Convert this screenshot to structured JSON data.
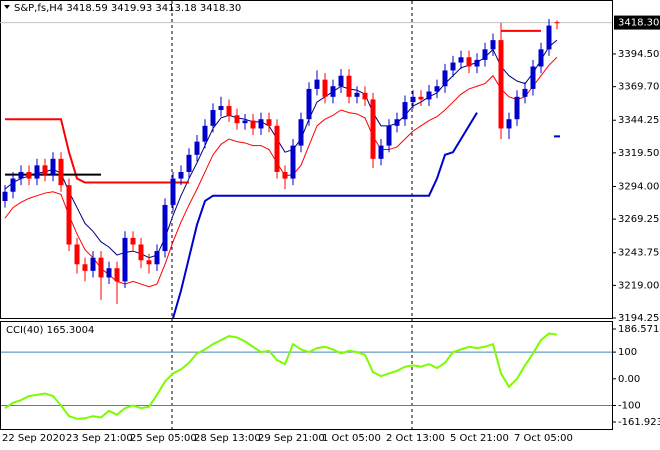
{
  "chart_data": [
    {
      "type": "candlestick",
      "title": "S&P,fs,H4  3418.59 3419.93 3413.18 3418.30",
      "categories": [
        "22 Sep 2020",
        null,
        null,
        null,
        null,
        null,
        null,
        null,
        "23 Sep 21:00",
        null,
        null,
        null,
        null,
        null,
        null,
        null,
        "25 Sep 05:00",
        null,
        null,
        null,
        null,
        null,
        null,
        null,
        "28 Sep 13:00",
        null,
        null,
        null,
        null,
        null,
        null,
        null,
        "29 Sep 21:00",
        null,
        null,
        null,
        null,
        null,
        null,
        null,
        "1 Oct 05:00",
        null,
        null,
        null,
        null,
        null,
        null,
        null,
        "2 Oct 13:00",
        null,
        null,
        null,
        null,
        null,
        null,
        null,
        "5 Oct 21:00",
        null,
        null,
        null,
        null,
        null,
        null,
        null,
        "7 Oct 05:00",
        null,
        null,
        null,
        null,
        null
      ],
      "open": [
        3283,
        3290,
        3300,
        3305,
        3300,
        3310,
        3303,
        3315,
        3295,
        3250,
        3235,
        3230,
        3240,
        3225,
        3232,
        3222,
        3255,
        3250,
        3238,
        3235,
        3245,
        3280,
        3300,
        3305,
        3318,
        3328,
        3340,
        3352,
        3355,
        3348,
        3342,
        3344,
        3338,
        3345,
        3340,
        3305,
        3300,
        3325,
        3345,
        3368,
        3375,
        3362,
        3370,
        3378,
        3362,
        3365,
        3360,
        3315,
        3325,
        3340,
        3345,
        3358,
        3362,
        3360,
        3366,
        3370,
        3382,
        3388,
        3392,
        3385,
        3390,
        3398,
        3405,
        3338,
        3345,
        3362,
        3368,
        3385,
        3398,
        3418.59
      ],
      "high": [
        3295,
        3305,
        3310,
        3310,
        3315,
        3315,
        3320,
        3320,
        3300,
        3255,
        3240,
        3245,
        3245,
        3237,
        3237,
        3260,
        3260,
        3255,
        3243,
        3250,
        3285,
        3305,
        3310,
        3323,
        3333,
        3345,
        3357,
        3362,
        3360,
        3353,
        3349,
        3349,
        3350,
        3350,
        3345,
        3310,
        3330,
        3350,
        3373,
        3382,
        3380,
        3375,
        3383,
        3383,
        3370,
        3370,
        3365,
        3330,
        3345,
        3350,
        3363,
        3367,
        3367,
        3371,
        3375,
        3387,
        3393,
        3397,
        3397,
        3395,
        3403,
        3410,
        3418,
        3350,
        3367,
        3373,
        3390,
        3403,
        3421,
        3419.93
      ],
      "low": [
        3278,
        3285,
        3295,
        3295,
        3295,
        3298,
        3298,
        3290,
        3245,
        3228,
        3222,
        3225,
        3208,
        3220,
        3205,
        3217,
        3245,
        3232,
        3228,
        3230,
        3240,
        3275,
        3295,
        3300,
        3313,
        3323,
        3335,
        3347,
        3343,
        3337,
        3337,
        3333,
        3333,
        3335,
        3300,
        3292,
        3295,
        3320,
        3340,
        3363,
        3357,
        3357,
        3365,
        3357,
        3357,
        3355,
        3308,
        3310,
        3320,
        3335,
        3340,
        3353,
        3355,
        3355,
        3361,
        3365,
        3377,
        3383,
        3380,
        3380,
        3385,
        3393,
        3330,
        3330,
        3340,
        3357,
        3363,
        3380,
        3393,
        3413.18
      ],
      "close": [
        3290,
        3300,
        3305,
        3300,
        3310,
        3303,
        3315,
        3295,
        3250,
        3235,
        3230,
        3240,
        3225,
        3232,
        3222,
        3255,
        3250,
        3238,
        3235,
        3245,
        3280,
        3300,
        3305,
        3318,
        3328,
        3340,
        3352,
        3355,
        3348,
        3342,
        3344,
        3338,
        3345,
        3340,
        3305,
        3300,
        3325,
        3345,
        3368,
        3375,
        3362,
        3370,
        3378,
        3362,
        3365,
        3360,
        3315,
        3325,
        3340,
        3345,
        3358,
        3362,
        3360,
        3366,
        3370,
        3382,
        3388,
        3392,
        3385,
        3390,
        3398,
        3405,
        3338,
        3345,
        3362,
        3368,
        3385,
        3398,
        3416,
        3418.3
      ],
      "up_color": "#0000cd",
      "down_color": "#ff0000",
      "series": [
        {
          "color": "#000080",
          "width": 1,
          "values": [
            3292,
            3297,
            3300,
            3302,
            3304,
            3305,
            3307,
            3304,
            3290,
            3278,
            3266,
            3260,
            3252,
            3248,
            3242,
            3244,
            3245,
            3243,
            3240,
            3242,
            3255,
            3272,
            3287,
            3300,
            3312,
            3325,
            3338,
            3346,
            3348,
            3346,
            3345,
            3343,
            3343,
            3340,
            3330,
            3320,
            3322,
            3330,
            3345,
            3358,
            3362,
            3366,
            3370,
            3368,
            3367,
            3364,
            3350,
            3340,
            3340,
            3342,
            3348,
            3355,
            3358,
            3362,
            3365,
            3372,
            3378,
            3384,
            3386,
            3388,
            3392,
            3398,
            3385,
            3378,
            3374,
            3372,
            3380,
            3390,
            3400,
            3405
          ]
        },
        {
          "color": "#ff0000",
          "width": 1,
          "values": [
            3270,
            3278,
            3282,
            3285,
            3287,
            3289,
            3290,
            3288,
            3272,
            3258,
            3246,
            3240,
            3232,
            3227,
            3222,
            3220,
            3222,
            3220,
            3218,
            3220,
            3235,
            3252,
            3267,
            3280,
            3292,
            3305,
            3318,
            3326,
            3330,
            3328,
            3327,
            3325,
            3325,
            3322,
            3312,
            3302,
            3303,
            3310,
            3325,
            3340,
            3345,
            3348,
            3352,
            3350,
            3349,
            3346,
            3332,
            3322,
            3322,
            3324,
            3330,
            3336,
            3340,
            3344,
            3347,
            3352,
            3358,
            3364,
            3368,
            3370,
            3372,
            3378,
            3368,
            3362,
            3360,
            3362,
            3370,
            3378,
            3386,
            3392
          ]
        },
        {
          "color": "#ff0000",
          "width": 2,
          "values": [
            3345,
            3345,
            3345,
            3345,
            3345,
            3345,
            3345,
            3345,
            3320,
            3300,
            3297,
            3297,
            3297,
            3297,
            3297,
            3297,
            3297,
            3297,
            3297,
            3297,
            3297,
            3297,
            3297,
            3297,
            null,
            null,
            null,
            null,
            null,
            null,
            null,
            null,
            null,
            null,
            null,
            null,
            null,
            null,
            null,
            null,
            null,
            null,
            null,
            null,
            null,
            null,
            null,
            null,
            null,
            null,
            null,
            null,
            null,
            null,
            null,
            null,
            null,
            null,
            null,
            null,
            null,
            null,
            3412,
            3412,
            3412,
            3412,
            3412,
            3412,
            null,
            null
          ]
        },
        {
          "color": "#000000",
          "width": 2,
          "values": [
            3303,
            3303,
            3303,
            3303,
            3303,
            3303,
            3303,
            3303,
            3303,
            3303,
            3303,
            3303,
            3303,
            null,
            null,
            null,
            null,
            null,
            null,
            null,
            null,
            null,
            null,
            null,
            null,
            null,
            null,
            null,
            null,
            null,
            null,
            null,
            null,
            null,
            null,
            null,
            null,
            null,
            null,
            null,
            null,
            null,
            null,
            null,
            null,
            null,
            null,
            null,
            null,
            null,
            null,
            null,
            null,
            null,
            null,
            null,
            null,
            null,
            null,
            null,
            null,
            null,
            null,
            null,
            null,
            null,
            null,
            null,
            null,
            null
          ]
        },
        {
          "color": "#0000cd",
          "width": 2,
          "values": [
            null,
            null,
            null,
            null,
            null,
            null,
            null,
            null,
            null,
            null,
            null,
            null,
            null,
            null,
            null,
            null,
            null,
            null,
            null,
            null,
            null,
            3194,
            3215,
            3240,
            3265,
            3283,
            3287,
            3287,
            3287,
            3287,
            3287,
            3287,
            3287,
            3287,
            3287,
            3287,
            3287,
            3287,
            3287,
            3287,
            3287,
            3287,
            3287,
            3287,
            3287,
            3287,
            3287,
            3287,
            3287,
            3287,
            3287,
            3287,
            3287,
            3287,
            3300,
            3318,
            3320,
            3330,
            3340,
            3350,
            null,
            null,
            null,
            null,
            null,
            null,
            null,
            null,
            null,
            3332
          ]
        }
      ],
      "ylim": [
        3194.25,
        3424.8
      ],
      "yticks": [
        {
          "value": 3394.5,
          "label": "3394.50"
        },
        {
          "value": 3369.7,
          "label": "3369.70"
        },
        3344.25,
        {
          "value": 3319.5,
          "label": "3319.50"
        },
        {
          "value": 3294,
          "label": "3294.00"
        },
        3269.25,
        3243.75,
        {
          "value": 3219,
          "label": "3219.00"
        },
        3194.25
      ],
      "current_price": {
        "value": 3418.3,
        "label": "3418.30"
      }
    },
    {
      "type": "line",
      "title": "CCI(40) 165.3004",
      "series": [
        {
          "color": "#7cfc00",
          "values": [
            -110,
            -90,
            -80,
            -65,
            -60,
            -55,
            -65,
            -100,
            -140,
            -150,
            -148,
            -140,
            -145,
            -120,
            -135,
            -110,
            -100,
            -110,
            -105,
            -60,
            -10,
            20,
            35,
            60,
            95,
            110,
            130,
            145,
            160,
            155,
            140,
            120,
            100,
            105,
            70,
            55,
            130,
            110,
            100,
            115,
            120,
            110,
            95,
            105,
            100,
            90,
            25,
            10,
            20,
            30,
            45,
            50,
            45,
            55,
            40,
            60,
            100,
            110,
            120,
            115,
            120,
            130,
            20,
            -30,
            0,
            50,
            95,
            145,
            170,
            165.3004
          ]
        }
      ],
      "levels": [
        100,
        -100
      ],
      "level_color": "#4682b4",
      "ylim": [
        -161.9238,
        186.5714
      ],
      "yticks": [
        186.5714,
        100,
        {
          "value": 0,
          "label": "0.00"
        },
        -100,
        -161.9238
      ]
    }
  ]
}
